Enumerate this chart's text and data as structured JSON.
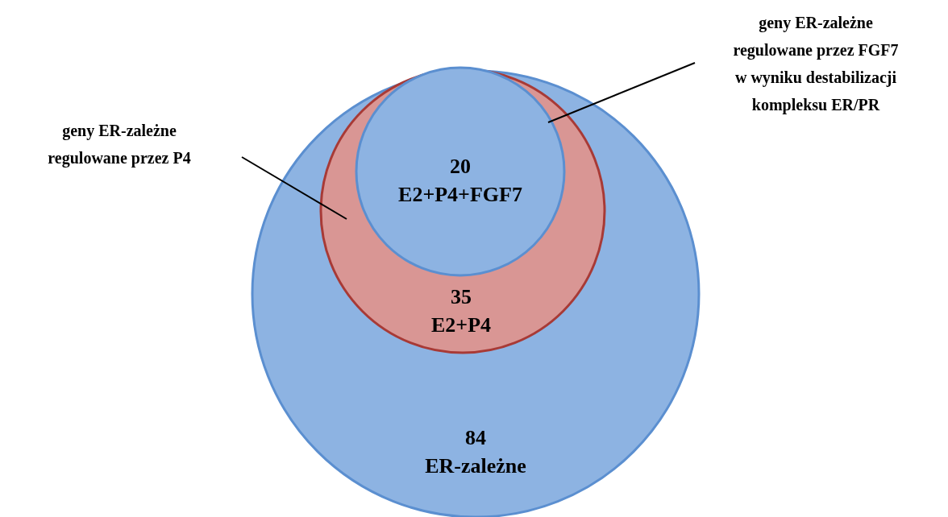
{
  "chart_data": {
    "type": "other",
    "categories": [
      "ER-zależne",
      "E2+P4",
      "E2+P4+FGF7"
    ],
    "values": [
      84,
      35,
      20
    ],
    "data_labels": true,
    "colors": [
      "#8db3e2",
      "#d99694",
      "#8db3e2"
    ],
    "annotations": [
      "geny ER-zależne\nregulowane przez P4",
      "geny ER-zależne\nregulowane przez FGF7\nw wyniku destabilizacji\nkompleksu ER/PR"
    ]
  }
}
